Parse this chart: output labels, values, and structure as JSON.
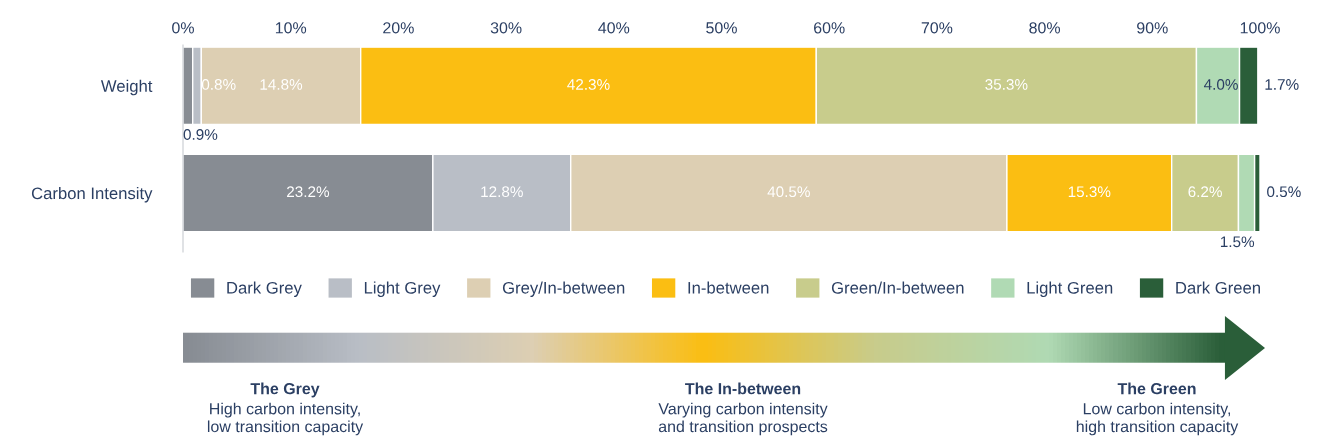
{
  "chart_data": {
    "type": "bar",
    "orientation": "horizontal",
    "stacked": true,
    "grid": false,
    "legend": "bottom",
    "categories": [
      "Weight",
      "Carbon Intensity"
    ],
    "xlim": [
      0,
      100
    ],
    "xticks": [
      {
        "value": 0,
        "label": "0%"
      },
      {
        "value": 10,
        "label": "10%"
      },
      {
        "value": 20,
        "label": "20%"
      },
      {
        "value": 30,
        "label": "30%"
      },
      {
        "value": 40,
        "label": "40%"
      },
      {
        "value": 50,
        "label": "50%"
      },
      {
        "value": 60,
        "label": "60%"
      },
      {
        "value": 70,
        "label": "70%"
      },
      {
        "value": 80,
        "label": "80%"
      },
      {
        "value": 90,
        "label": "90%"
      },
      {
        "value": 100,
        "label": "100%"
      }
    ],
    "series": [
      {
        "name": "Dark Grey",
        "color": "#878c93",
        "values": [
          0.9,
          23.2
        ],
        "value_labels": [
          "0.9%",
          "23.2%"
        ]
      },
      {
        "name": "Light Grey",
        "color": "#b9bec6",
        "values": [
          0.8,
          12.8
        ],
        "value_labels": [
          "0.8%",
          "12.8%"
        ]
      },
      {
        "name": "Grey/In-between",
        "color": "#ddcfb3",
        "values": [
          14.8,
          40.5
        ],
        "value_labels": [
          "14.8%",
          "40.5%"
        ]
      },
      {
        "name": "In-between",
        "color": "#fbbe12",
        "values": [
          42.3,
          15.3
        ],
        "value_labels": [
          "42.3%",
          "15.3%"
        ]
      },
      {
        "name": "Green/In-between",
        "color": "#c8cc8c",
        "values": [
          35.3,
          6.2
        ],
        "value_labels": [
          "35.3%",
          "6.2%"
        ]
      },
      {
        "name": "Light Green",
        "color": "#b0dab4",
        "values": [
          4.0,
          1.5
        ],
        "value_labels": [
          "4.0%",
          "1.5%"
        ]
      },
      {
        "name": "Dark Green",
        "color": "#2a5e39",
        "values": [
          1.7,
          0.5
        ],
        "value_labels": [
          "1.7%",
          "0.5%"
        ]
      }
    ],
    "annotations": [
      "The Grey\nHigh carbon intensity,\nlow transition capacity",
      "The In-between\nVarying carbon intensity\nand transition prospects",
      "The Green\nLow carbon intensity,\nhigh transition capacity"
    ]
  }
}
